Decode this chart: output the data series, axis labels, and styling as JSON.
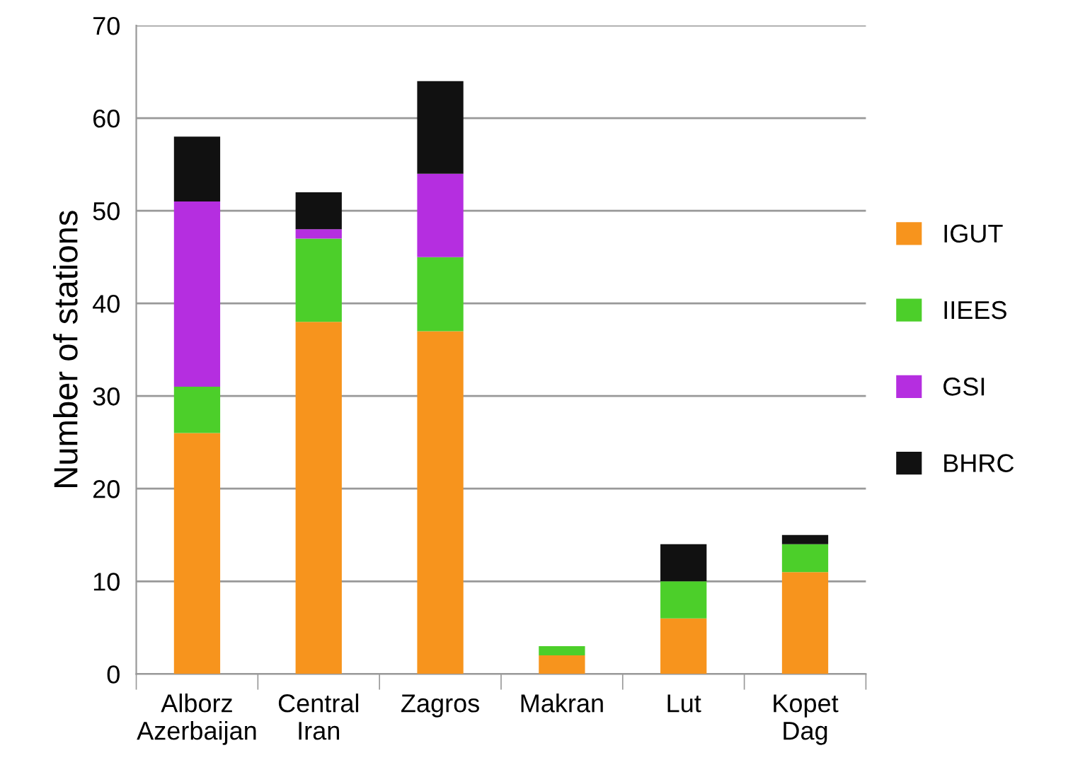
{
  "chart_data": {
    "type": "bar",
    "stacked": true,
    "ylabel": "Number of stations",
    "categories": [
      "Alborz\nAzerbaijan",
      "Central\nIran",
      "Zagros",
      "Makran",
      "Lut",
      "Kopet\nDag"
    ],
    "series": [
      {
        "name": "IGUT",
        "color": "#f7941d",
        "values": [
          26,
          38,
          37,
          2,
          6,
          11
        ]
      },
      {
        "name": "IIEES",
        "color": "#4ccf2a",
        "values": [
          5,
          9,
          8,
          1,
          4,
          3
        ]
      },
      {
        "name": "GSI",
        "color": "#b52ee0",
        "values": [
          20,
          1,
          9,
          0,
          0,
          0
        ]
      },
      {
        "name": "BHRC",
        "color": "#111111",
        "values": [
          7,
          4,
          10,
          0,
          4,
          1
        ]
      }
    ],
    "ylim": [
      0,
      70
    ],
    "yticks": [
      0,
      10,
      20,
      30,
      40,
      50,
      60,
      70
    ],
    "grid": "y",
    "legend": "right"
  }
}
